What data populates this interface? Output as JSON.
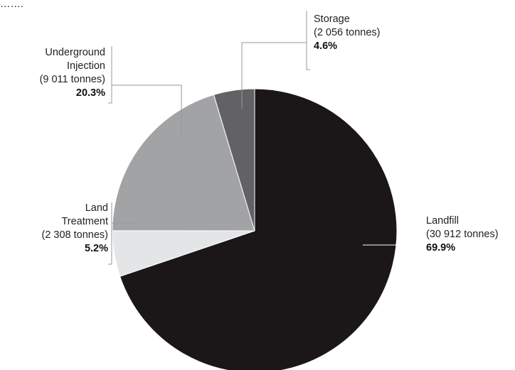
{
  "chart_data": {
    "type": "pie",
    "slices": [
      {
        "name": "Landfill",
        "value": 30912,
        "label_lines": [
          "Landfill",
          "(30 912 tonnes)"
        ],
        "percent": "69.9%",
        "color": "#1b1718"
      },
      {
        "name": "Land Treatment",
        "value": 2308,
        "label_lines": [
          "Land",
          "Treatment",
          "(2 308 tonnes)"
        ],
        "percent": "5.2%",
        "color": "#e4e5e7"
      },
      {
        "name": "Underground Injection",
        "value": 9011,
        "label_lines": [
          "Underground",
          "Injection",
          "(9 011 tonnes)"
        ],
        "percent": "20.3%",
        "color": "#a2a3a5"
      },
      {
        "name": "Storage",
        "value": 2056,
        "label_lines": [
          "Storage",
          "(2 056 tonnes)"
        ],
        "percent": "4.6%",
        "color": "#626264"
      }
    ],
    "start": "12 o'clock",
    "direction": "clockwise",
    "title": "",
    "legend": "none",
    "fragment_top_left": "……."
  }
}
